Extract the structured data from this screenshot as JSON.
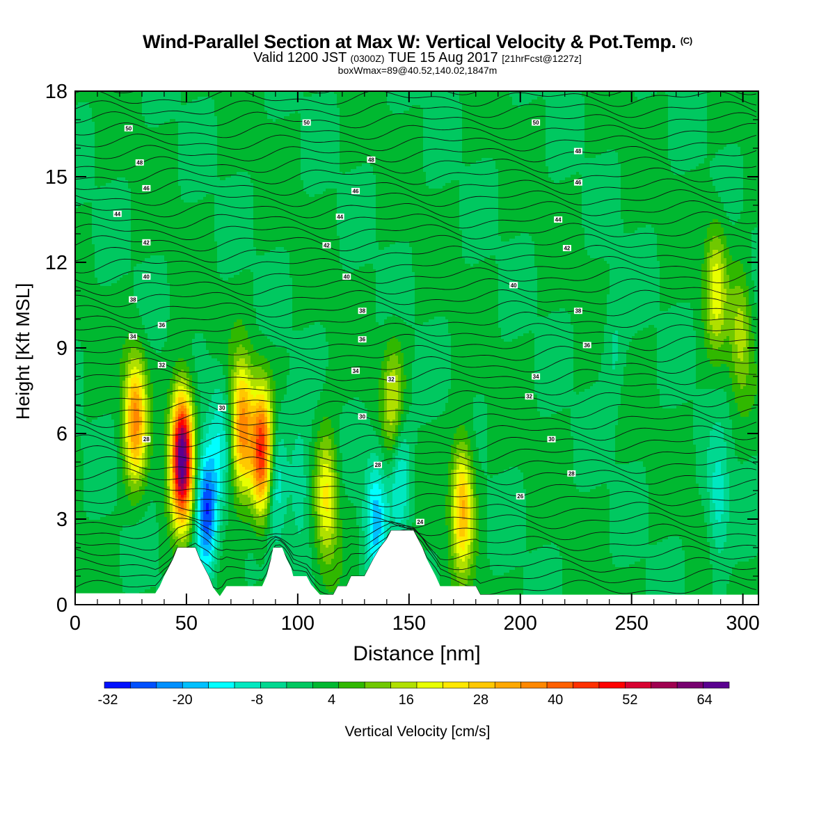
{
  "title": {
    "main": "Wind-Parallel Section at Max W: Vertical Velocity & Pot.Temp.",
    "copyright_mark": "(C)",
    "subtitle_valid": "Valid 1200 JST",
    "subtitle_z": "(0300Z)",
    "subtitle_date": "TUE 15 Aug 2017",
    "subtitle_fcst": "[21hrFcst@1227z]",
    "subsubtitle": "boxWmax=89@40.52,140.02,1847m"
  },
  "chart_data": {
    "type": "heatmap",
    "xlabel": "Distance [nm]",
    "ylabel": "Height [Kft MSL]",
    "xlim": [
      0,
      307
    ],
    "ylim": [
      0,
      18
    ],
    "x_ticks": [
      "0",
      "50",
      "100",
      "150",
      "200",
      "250",
      "300"
    ],
    "y_ticks": [
      "0",
      "3",
      "6",
      "9",
      "12",
      "15",
      "18"
    ],
    "colorbar": {
      "label": "Vertical Velocity [cm/s]",
      "range": [
        -32,
        70
      ],
      "tick_labels": [
        "-32",
        "-20",
        "-8",
        "4",
        "16",
        "28",
        "40",
        "52",
        "64"
      ],
      "colors": [
        "#0010ff",
        "#0050ff",
        "#0090ff",
        "#00c0ff",
        "#00ffff",
        "#00e8c0",
        "#00d890",
        "#00c860",
        "#00b830",
        "#30b800",
        "#70c800",
        "#b0e000",
        "#e8ff00",
        "#ffe800",
        "#ffc800",
        "#ffa800",
        "#ff8800",
        "#ff6000",
        "#ff3000",
        "#ff0000",
        "#d80030",
        "#a00050",
        "#780070",
        "#5a0090"
      ]
    },
    "terrain": [
      [
        0,
        0.4
      ],
      [
        36,
        0.4
      ],
      [
        38,
        0.65
      ],
      [
        40,
        1.0
      ],
      [
        42,
        1.3
      ],
      [
        44,
        1.6
      ],
      [
        46,
        2.0
      ],
      [
        54,
        2.0
      ],
      [
        56,
        1.6
      ],
      [
        58,
        1.3
      ],
      [
        60,
        1.0
      ],
      [
        62,
        0.6
      ],
      [
        65,
        0.3
      ],
      [
        68,
        0.65
      ],
      [
        84,
        0.65
      ],
      [
        86,
        1.0
      ],
      [
        88,
        1.6
      ],
      [
        89,
        2.0
      ],
      [
        93,
        2.0
      ],
      [
        95,
        1.6
      ],
      [
        97,
        1.3
      ],
      [
        98,
        1.0
      ],
      [
        104,
        1.0
      ],
      [
        106,
        0.7
      ],
      [
        110,
        0.35
      ],
      [
        116,
        0.35
      ],
      [
        118,
        0.65
      ],
      [
        122,
        0.65
      ],
      [
        124,
        1.0
      ],
      [
        130,
        1.0
      ],
      [
        132,
        1.3
      ],
      [
        134,
        1.6
      ],
      [
        137,
        2.0
      ],
      [
        140,
        2.3
      ],
      [
        142,
        2.6
      ],
      [
        152,
        2.6
      ],
      [
        154,
        2.3
      ],
      [
        156,
        2.0
      ],
      [
        158,
        1.6
      ],
      [
        160,
        1.3
      ],
      [
        162,
        1.0
      ],
      [
        164,
        0.65
      ],
      [
        180,
        0.65
      ],
      [
        182,
        0.35
      ],
      [
        307,
        0.35
      ]
    ],
    "updrafts": [
      {
        "x": 48,
        "y": 5.2,
        "peak": 68
      },
      {
        "x": 27,
        "y": 6.5,
        "peak": 34
      },
      {
        "x": 75,
        "y": 6.2,
        "peak": 36
      },
      {
        "x": 84,
        "y": 5.3,
        "peak": 46
      },
      {
        "x": 113,
        "y": 3.8,
        "peak": 22
      },
      {
        "x": 174,
        "y": 3.5,
        "peak": 30
      },
      {
        "x": 143,
        "y": 7.0,
        "peak": 16
      },
      {
        "x": 288,
        "y": 11.2,
        "peak": 18
      },
      {
        "x": 299,
        "y": 9.5,
        "peak": 14
      }
    ],
    "downdrafts": [
      {
        "x": 59,
        "y": 3.2,
        "peak": -30
      },
      {
        "x": 65,
        "y": 6.0,
        "peak": -10
      },
      {
        "x": 90,
        "y": 4.5,
        "peak": -14
      },
      {
        "x": 101,
        "y": 4.0,
        "peak": -10
      },
      {
        "x": 135,
        "y": 3.0,
        "peak": -18
      },
      {
        "x": 146,
        "y": 4.6,
        "peak": -15
      },
      {
        "x": 289,
        "y": 3.5,
        "peak": -12
      },
      {
        "x": 242,
        "y": 9.0,
        "peak": -6
      }
    ],
    "theta_labels": [
      {
        "text": "50",
        "x": 24,
        "y": 16.7
      },
      {
        "text": "50",
        "x": 104,
        "y": 16.9
      },
      {
        "text": "50",
        "x": 207,
        "y": 16.9
      },
      {
        "text": "48",
        "x": 29,
        "y": 15.5
      },
      {
        "text": "48",
        "x": 133,
        "y": 15.6
      },
      {
        "text": "48",
        "x": 226,
        "y": 15.9
      },
      {
        "text": "46",
        "x": 32,
        "y": 14.6
      },
      {
        "text": "46",
        "x": 126,
        "y": 14.5
      },
      {
        "text": "46",
        "x": 226,
        "y": 14.8
      },
      {
        "text": "44",
        "x": 19,
        "y": 13.7
      },
      {
        "text": "44",
        "x": 119,
        "y": 13.6
      },
      {
        "text": "44",
        "x": 217,
        "y": 13.5
      },
      {
        "text": "42",
        "x": 32,
        "y": 12.7
      },
      {
        "text": "42",
        "x": 113,
        "y": 12.6
      },
      {
        "text": "42",
        "x": 221,
        "y": 12.5
      },
      {
        "text": "40",
        "x": 32,
        "y": 11.5
      },
      {
        "text": "40",
        "x": 122,
        "y": 11.5
      },
      {
        "text": "40",
        "x": 197,
        "y": 11.2
      },
      {
        "text": "38",
        "x": 26,
        "y": 10.7
      },
      {
        "text": "38",
        "x": 129,
        "y": 10.3
      },
      {
        "text": "38",
        "x": 226,
        "y": 10.3
      },
      {
        "text": "36",
        "x": 39,
        "y": 9.8
      },
      {
        "text": "36",
        "x": 129,
        "y": 9.3
      },
      {
        "text": "36",
        "x": 230,
        "y": 9.1
      },
      {
        "text": "34",
        "x": 26,
        "y": 9.4
      },
      {
        "text": "34",
        "x": 126,
        "y": 8.2
      },
      {
        "text": "34",
        "x": 207,
        "y": 8.0
      },
      {
        "text": "32",
        "x": 39,
        "y": 8.4
      },
      {
        "text": "32",
        "x": 142,
        "y": 7.9
      },
      {
        "text": "32",
        "x": 204,
        "y": 7.3
      },
      {
        "text": "30",
        "x": 66,
        "y": 6.9
      },
      {
        "text": "30",
        "x": 129,
        "y": 6.6
      },
      {
        "text": "30",
        "x": 214,
        "y": 5.8
      },
      {
        "text": "28",
        "x": 32,
        "y": 5.8
      },
      {
        "text": "28",
        "x": 136,
        "y": 4.9
      },
      {
        "text": "28",
        "x": 223,
        "y": 4.6
      },
      {
        "text": "26",
        "x": 200,
        "y": 3.8
      },
      {
        "text": "24",
        "x": 155,
        "y": 2.9
      }
    ]
  }
}
